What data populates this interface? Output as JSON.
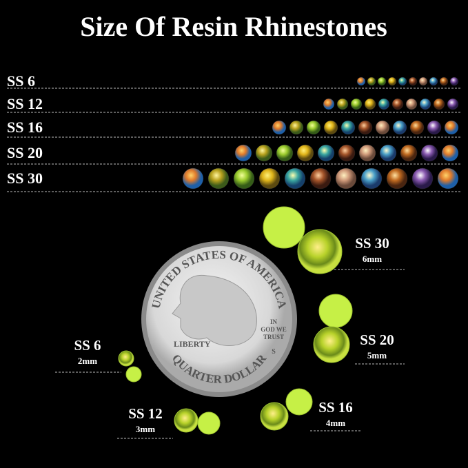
{
  "title": "Size Of Resin Rhinestones",
  "rows": [
    "SS 6",
    "SS 12",
    "SS 16",
    "SS 20",
    "SS 30"
  ],
  "callouts": [
    {
      "label": "SS 30",
      "size": "6mm"
    },
    {
      "label": "SS 20",
      "size": "5mm"
    },
    {
      "label": "SS 6",
      "size": "2mm"
    },
    {
      "label": "SS 12",
      "size": "3mm"
    },
    {
      "label": "SS 16",
      "size": "4mm"
    }
  ],
  "coin": {
    "top": "UNITED STATES OF AMERICA",
    "bottom": "QUARTER DOLLAR",
    "liberty": "LIBERTY",
    "motto": [
      "IN",
      "GOD WE",
      "TRUST"
    ],
    "mint": "S"
  }
}
